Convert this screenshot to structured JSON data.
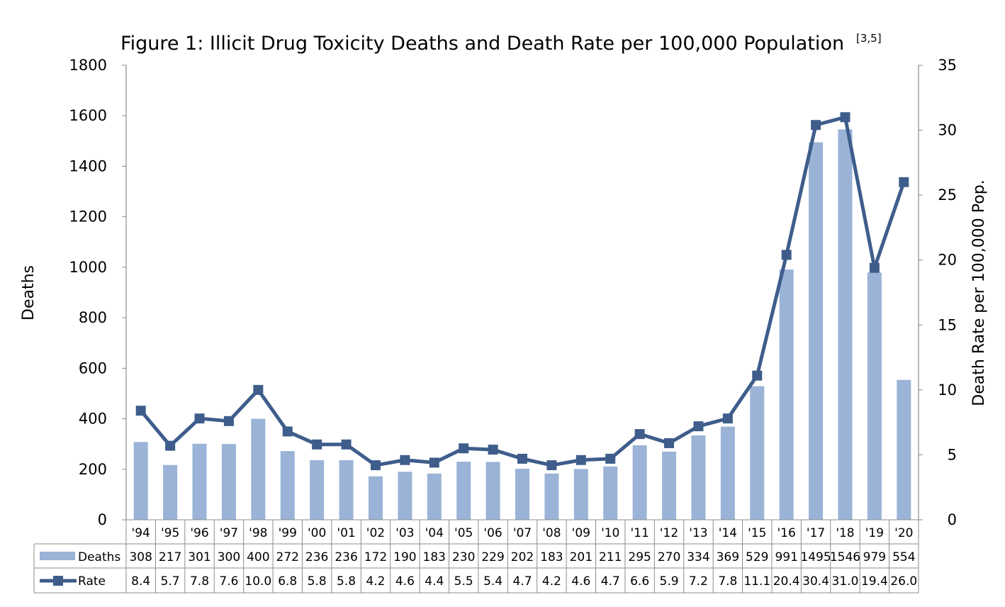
{
  "chart_data": {
    "type": "bar+line",
    "title": "Figure 1: Illicit Drug Toxicity Deaths and Death Rate per 100,000 Population",
    "title_superscript": "[3,5]",
    "categories": [
      "'94",
      "'95",
      "'96",
      "'97",
      "'98",
      "'99",
      "'00",
      "'01",
      "'02",
      "'03",
      "'04",
      "'05",
      "'06",
      "'07",
      "'08",
      "'09",
      "'10",
      "'11",
      "'12",
      "'13",
      "'14",
      "'15",
      "'16",
      "'17",
      "'18",
      "'19",
      "'20"
    ],
    "series": [
      {
        "name": "Deaths",
        "type": "bar",
        "axis": "left",
        "color": "#9ab3d7",
        "values": [
          308,
          217,
          301,
          300,
          400,
          272,
          236,
          236,
          172,
          190,
          183,
          230,
          229,
          202,
          183,
          201,
          211,
          295,
          270,
          334,
          369,
          529,
          991,
          1495,
          1546,
          979,
          554
        ]
      },
      {
        "name": "Rate",
        "type": "line",
        "axis": "right",
        "color": "#3e5d8b",
        "marker": "square",
        "values": [
          8.4,
          5.7,
          7.8,
          7.6,
          10.0,
          6.8,
          5.8,
          5.8,
          4.2,
          4.6,
          4.4,
          5.5,
          5.4,
          4.7,
          4.2,
          4.6,
          4.7,
          6.6,
          5.9,
          7.2,
          7.8,
          11.1,
          20.4,
          30.4,
          31.0,
          19.4,
          26.0
        ],
        "labels": [
          "8.4",
          "5.7",
          "7.8",
          "7.6",
          "10.0",
          "6.8",
          "5.8",
          "5.8",
          "4.2",
          "4.6",
          "4.4",
          "5.5",
          "5.4",
          "4.7",
          "4.2",
          "4.6",
          "4.7",
          "6.6",
          "5.9",
          "7.2",
          "7.8",
          "11.1",
          "20.4",
          "30.4",
          "31.0",
          "19.4",
          "26.0"
        ]
      }
    ],
    "ylabel": "Deaths",
    "y2label": "Death Rate per 100,000 Pop.",
    "ylim": [
      0,
      1800
    ],
    "y_ticks": [
      "0",
      "200",
      "400",
      "600",
      "800",
      "1000",
      "1200",
      "1400",
      "1600",
      "1800"
    ],
    "y2lim": [
      0,
      35
    ],
    "y2_ticks": [
      "0",
      "5",
      "10",
      "15",
      "20",
      "25",
      "30",
      "35"
    ],
    "grid": false,
    "legend": "data-table"
  }
}
